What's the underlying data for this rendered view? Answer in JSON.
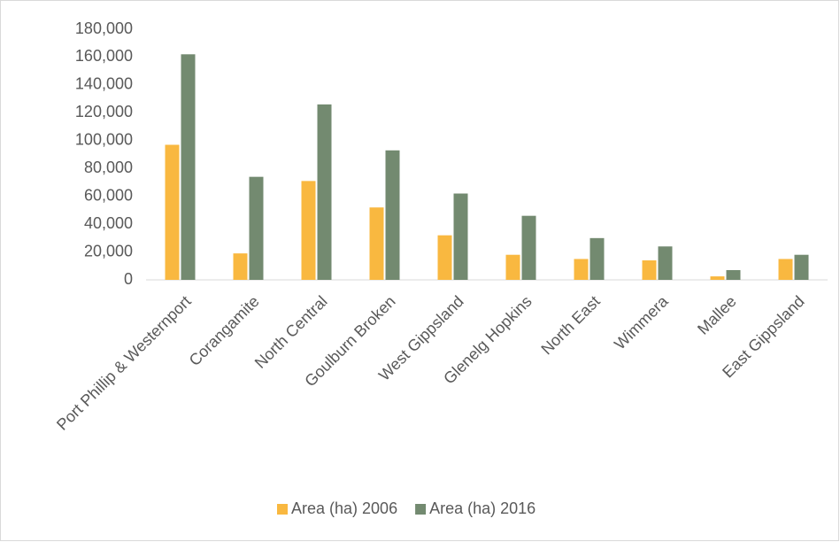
{
  "chart_data": {
    "type": "bar",
    "categories": [
      "Port Phillip & Westernport",
      "Corangamite",
      "North Central",
      "Goulburn Broken",
      "West Gippsland",
      "Glenelg Hopkins",
      "North East",
      "Wimmera",
      "Mallee",
      "East Gippsland"
    ],
    "series": [
      {
        "name": "Area (ha) 2006",
        "color": "#f9b840",
        "values": [
          97000,
          19000,
          71000,
          52000,
          32000,
          18000,
          15000,
          14000,
          2500,
          15000
        ]
      },
      {
        "name": "Area (ha) 2016",
        "color": "#738a70",
        "values": [
          162000,
          74000,
          126000,
          93000,
          62000,
          46000,
          30000,
          24000,
          7000,
          18000
        ]
      }
    ],
    "ylim": [
      0,
      180000
    ],
    "yticks": [
      0,
      {
        "value": 20000,
        "label": "20,000"
      },
      {
        "value": 40000,
        "label": "40,000"
      },
      {
        "value": 60000,
        "label": "60,000"
      },
      {
        "value": 80000,
        "label": "80,000"
      },
      {
        "value": 100000,
        "label": "100,000"
      },
      {
        "value": 120000,
        "label": "120,000"
      },
      {
        "value": 140000,
        "label": "140,000"
      },
      {
        "value": 160000,
        "label": "160,000"
      },
      {
        "value": 180000,
        "label": "180,000"
      }
    ],
    "grid": false,
    "legend": "bottom"
  }
}
